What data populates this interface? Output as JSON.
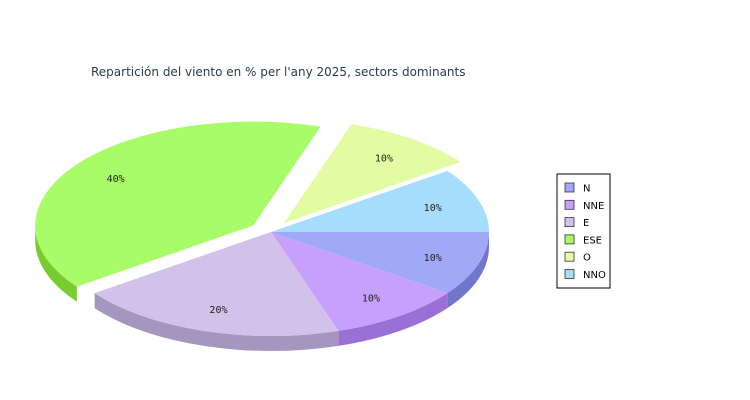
{
  "chart_data": {
    "type": "pie",
    "title": "Repartición del viento en % per l'any 2025, sectors dominants",
    "categories": [
      "N",
      "NNE",
      "E",
      "ESE",
      "O",
      "NNO"
    ],
    "values": [
      10,
      10,
      20,
      40,
      10,
      10
    ],
    "labels": [
      "10%",
      "10%",
      "20%",
      "40%",
      "10%",
      "10%"
    ],
    "colors": [
      "#a0a8f8",
      "#c6a0fc",
      "#d2c2ea",
      "#a8fc68",
      "#e2fca4",
      "#a6dcfc"
    ],
    "side_colors": [
      "#7076cc",
      "#9a70d6",
      "#a596c0",
      "#78cc30",
      "#b8cc78",
      "#78aed0"
    ],
    "exploded": [
      "ESE",
      "O"
    ],
    "three_d": true,
    "legend_position": "right"
  }
}
